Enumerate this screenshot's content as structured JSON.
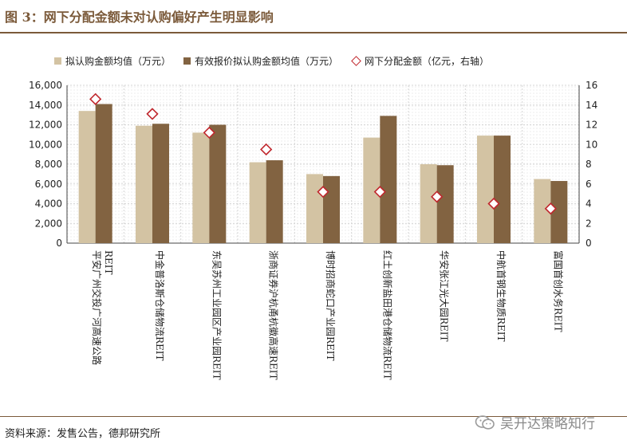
{
  "figure": {
    "title": "图 3：网下分配金额未对认购偏好产生明显影响",
    "source": "资料来源：发售公告，德邦研究所",
    "watermark": "吴开达策略知行"
  },
  "colors": {
    "title": "#7b5a3a",
    "series_light": "#d3c3a3",
    "series_dark": "#826341",
    "marker": "#c0272d",
    "grid": "#d6d6d6"
  },
  "chart_data": {
    "type": "bar",
    "categories": [
      "平安广州交投广河高速公路REIT",
      "中金普洛斯仓储物流REIT",
      "东吴苏州工业园区产业园REIT",
      "浙商证券沪杭甬杭徽高速REIT",
      "博时招商蛇口产业园REIT",
      "红土创新盐田港仓储物流REIT",
      "华安张江光大园REIT",
      "中航首钢生物质REIT",
      "富国首创水务REIT"
    ],
    "category_lines": [
      [
        "平安广州交投广河高速公路",
        "REIT"
      ],
      [
        "中金普洛斯仓储物流REIT"
      ],
      [
        "东吴苏州工业园区产业园REIT"
      ],
      [
        "浙商证券沪杭甬杭徽高速REIT"
      ],
      [
        "博时招商蛇口产业园REIT"
      ],
      [
        "红土创新盐田港仓储物流REIT"
      ],
      [
        "华安张江光大园REIT"
      ],
      [
        "中航首钢生物质REIT"
      ],
      [
        "富国首创水务REIT"
      ]
    ],
    "series": [
      {
        "name": "拟认购金额均值（万元）",
        "kind": "bar",
        "axis": "left",
        "values": [
          13400,
          11900,
          11200,
          8200,
          7000,
          10700,
          8000,
          10900,
          6500
        ]
      },
      {
        "name": "有效报价拟认购金额均值（万元）",
        "kind": "bar",
        "axis": "left",
        "values": [
          14100,
          12100,
          12000,
          8400,
          6800,
          12900,
          7900,
          10900,
          6300
        ]
      },
      {
        "name": "网下分配金额（亿元，右轴）",
        "kind": "marker",
        "axis": "right",
        "values": [
          14.6,
          13.1,
          11.2,
          9.5,
          5.2,
          5.2,
          4.7,
          4.0,
          3.5
        ]
      }
    ],
    "y_left": {
      "min": 0,
      "max": 16000,
      "step": 2000,
      "ticks": [
        "0",
        "2,000",
        "4,000",
        "6,000",
        "8,000",
        "10,000",
        "12,000",
        "14,000",
        "16,000"
      ]
    },
    "y_right": {
      "min": 0,
      "max": 16,
      "step": 2,
      "ticks": [
        "0",
        "2",
        "4",
        "6",
        "8",
        "10",
        "12",
        "14",
        "16"
      ]
    },
    "legend_position": "top",
    "grid": true
  }
}
